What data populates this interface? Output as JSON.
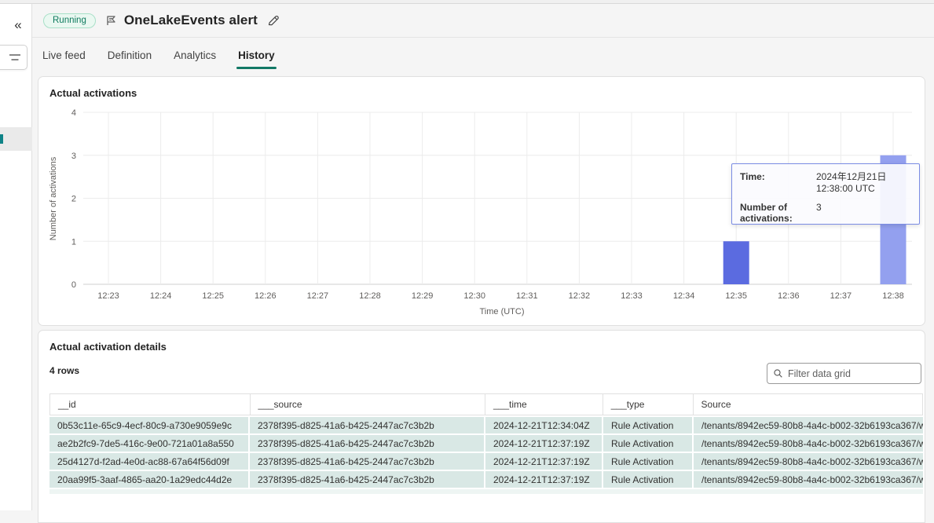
{
  "colors": {
    "accent_teal": "#117865",
    "badge_bg": "#eaf8f1",
    "badge_text": "#0e7a5e",
    "bar": "#5b6be0",
    "bar_hover": "#93a0ef",
    "row_bg": "#d9e8e5",
    "tooltip_border": "#7b8ce4"
  },
  "sidebar": {
    "collapse_icon": "«"
  },
  "header": {
    "status_badge": "Running",
    "title": "OneLakeEvents alert"
  },
  "tabs": [
    {
      "label": "Live feed",
      "active": false
    },
    {
      "label": "Definition",
      "active": false
    },
    {
      "label": "Analytics",
      "active": false
    },
    {
      "label": "History",
      "active": true
    }
  ],
  "chart": {
    "title": "Actual activations",
    "chart_data": {
      "type": "bar",
      "categories": [
        "12:23",
        "12:24",
        "12:25",
        "12:26",
        "12:27",
        "12:28",
        "12:29",
        "12:30",
        "12:31",
        "12:32",
        "12:33",
        "12:34",
        "12:35",
        "12:36",
        "12:37",
        "12:38"
      ],
      "values": [
        0,
        0,
        0,
        0,
        0,
        0,
        0,
        0,
        0,
        0,
        0,
        0,
        1,
        0,
        0,
        3
      ],
      "title": "Actual activations",
      "xlabel": "Time (UTC)",
      "ylabel": "Number of activations",
      "ylim": [
        0,
        4
      ],
      "yticks": [
        0,
        1,
        2,
        3,
        4
      ],
      "grid": true,
      "legend": false,
      "hover_index": 15
    },
    "tooltip": {
      "time_label": "Time:",
      "time_value_line1": "2024年12月21日",
      "time_value_line2": "12:38:00 UTC",
      "count_label": "Number of activations:",
      "count_value": "3"
    }
  },
  "details": {
    "title": "Actual activation details",
    "row_count_label": "4 rows",
    "filter_placeholder": "Filter data grid",
    "columns": [
      "__id",
      "___source",
      "___time",
      "___type",
      "Source"
    ],
    "rows": [
      [
        "0b53c11e-65c9-4ecf-80c9-a730e9059e9c",
        "2378f395-d825-41a6-b425-2447ac7c3b2b",
        "2024-12-21T12:34:04Z",
        "Rule Activation",
        "/tenants/8942ec59-80b8-4a4c-b002-32b6193ca367/w"
      ],
      [
        "ae2b2fc9-7de5-416c-9e00-721a01a8a550",
        "2378f395-d825-41a6-b425-2447ac7c3b2b",
        "2024-12-21T12:37:19Z",
        "Rule Activation",
        "/tenants/8942ec59-80b8-4a4c-b002-32b6193ca367/w"
      ],
      [
        "25d4127d-f2ad-4e0d-ac88-67a64f56d09f",
        "2378f395-d825-41a6-b425-2447ac7c3b2b",
        "2024-12-21T12:37:19Z",
        "Rule Activation",
        "/tenants/8942ec59-80b8-4a4c-b002-32b6193ca367/w"
      ],
      [
        "20aa99f5-3aaf-4865-aa20-1a29edc44d2e",
        "2378f395-d825-41a6-b425-2447ac7c3b2b",
        "2024-12-21T12:37:19Z",
        "Rule Activation",
        "/tenants/8942ec59-80b8-4a4c-b002-32b6193ca367/w"
      ]
    ]
  }
}
